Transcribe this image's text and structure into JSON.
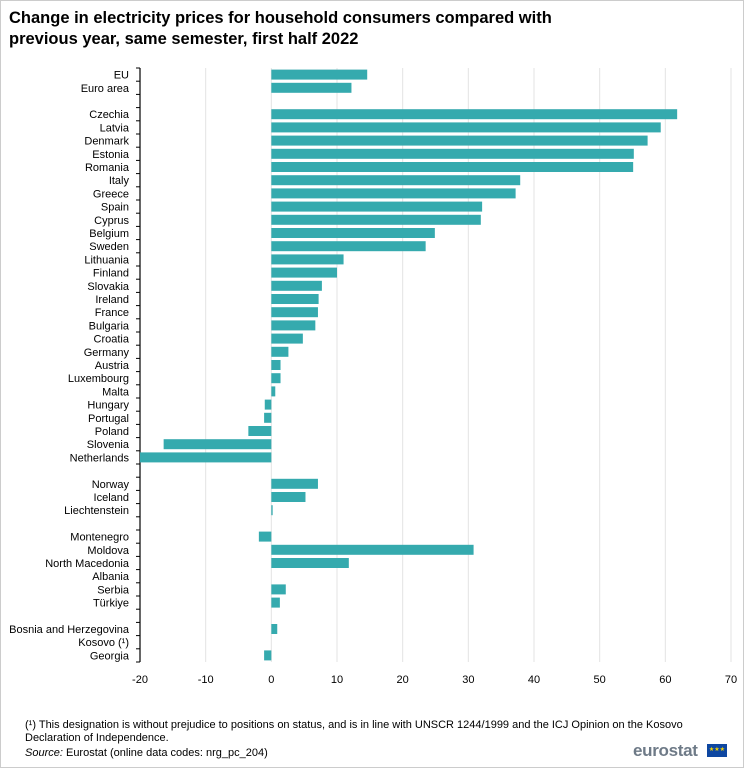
{
  "chart_data": {
    "type": "bar",
    "orientation": "horizontal",
    "title": "Change in electricity prices for household consumers compared with previous year, same semester, first half 2022",
    "xlabel": "",
    "ylabel": "",
    "xlim": [
      -20,
      70
    ],
    "xticks": [
      "-20",
      "-10",
      "0",
      "10",
      "20",
      "30",
      "40",
      "50",
      "60",
      "70"
    ],
    "grid": true,
    "legend": "none",
    "bar_color": "#35aaae",
    "categories": [
      "EU",
      "Euro area",
      "",
      "Czechia",
      "Latvia",
      "Denmark",
      "Estonia",
      "Romania",
      "Italy",
      "Greece",
      "Spain",
      "Cyprus",
      "Belgium",
      "Sweden",
      "Lithuania",
      "Finland",
      "Slovakia",
      "Ireland",
      "France",
      "Bulgaria",
      "Croatia",
      "Germany",
      "Austria",
      "Luxembourg",
      "Malta",
      "Hungary",
      "Portugal",
      "Poland",
      "Slovenia",
      "Netherlands",
      "",
      "Norway",
      "Iceland",
      "Liechtenstein",
      "",
      "Montenegro",
      "Moldova",
      "North Macedonia",
      "Albania",
      "Serbia",
      "Türkiye",
      "",
      "Bosnia and Herzegovina",
      "Kosovo (¹)",
      "Georgia"
    ],
    "values": [
      14.6,
      12.2,
      null,
      61.8,
      59.3,
      57.3,
      55.2,
      55.1,
      37.9,
      37.2,
      32.1,
      31.9,
      24.9,
      23.5,
      11.0,
      10.0,
      7.7,
      7.2,
      7.1,
      6.7,
      4.8,
      2.6,
      1.4,
      1.4,
      0.6,
      -1.0,
      -1.1,
      -3.5,
      -16.4,
      -20.2,
      null,
      7.1,
      5.2,
      0.2,
      null,
      -1.9,
      30.8,
      11.8,
      null,
      2.2,
      1.3,
      null,
      0.9,
      null,
      -1.1
    ]
  },
  "footnote": "(¹) This designation is without prejudice to positions on status, and is in line with UNSCR 1244/1999 and the ICJ Opinion on the Kosovo Declaration of Independence.",
  "source_label": "Source:",
  "source_text": " Eurostat (online data codes: nrg_pc_204)",
  "logo": "eurostat"
}
